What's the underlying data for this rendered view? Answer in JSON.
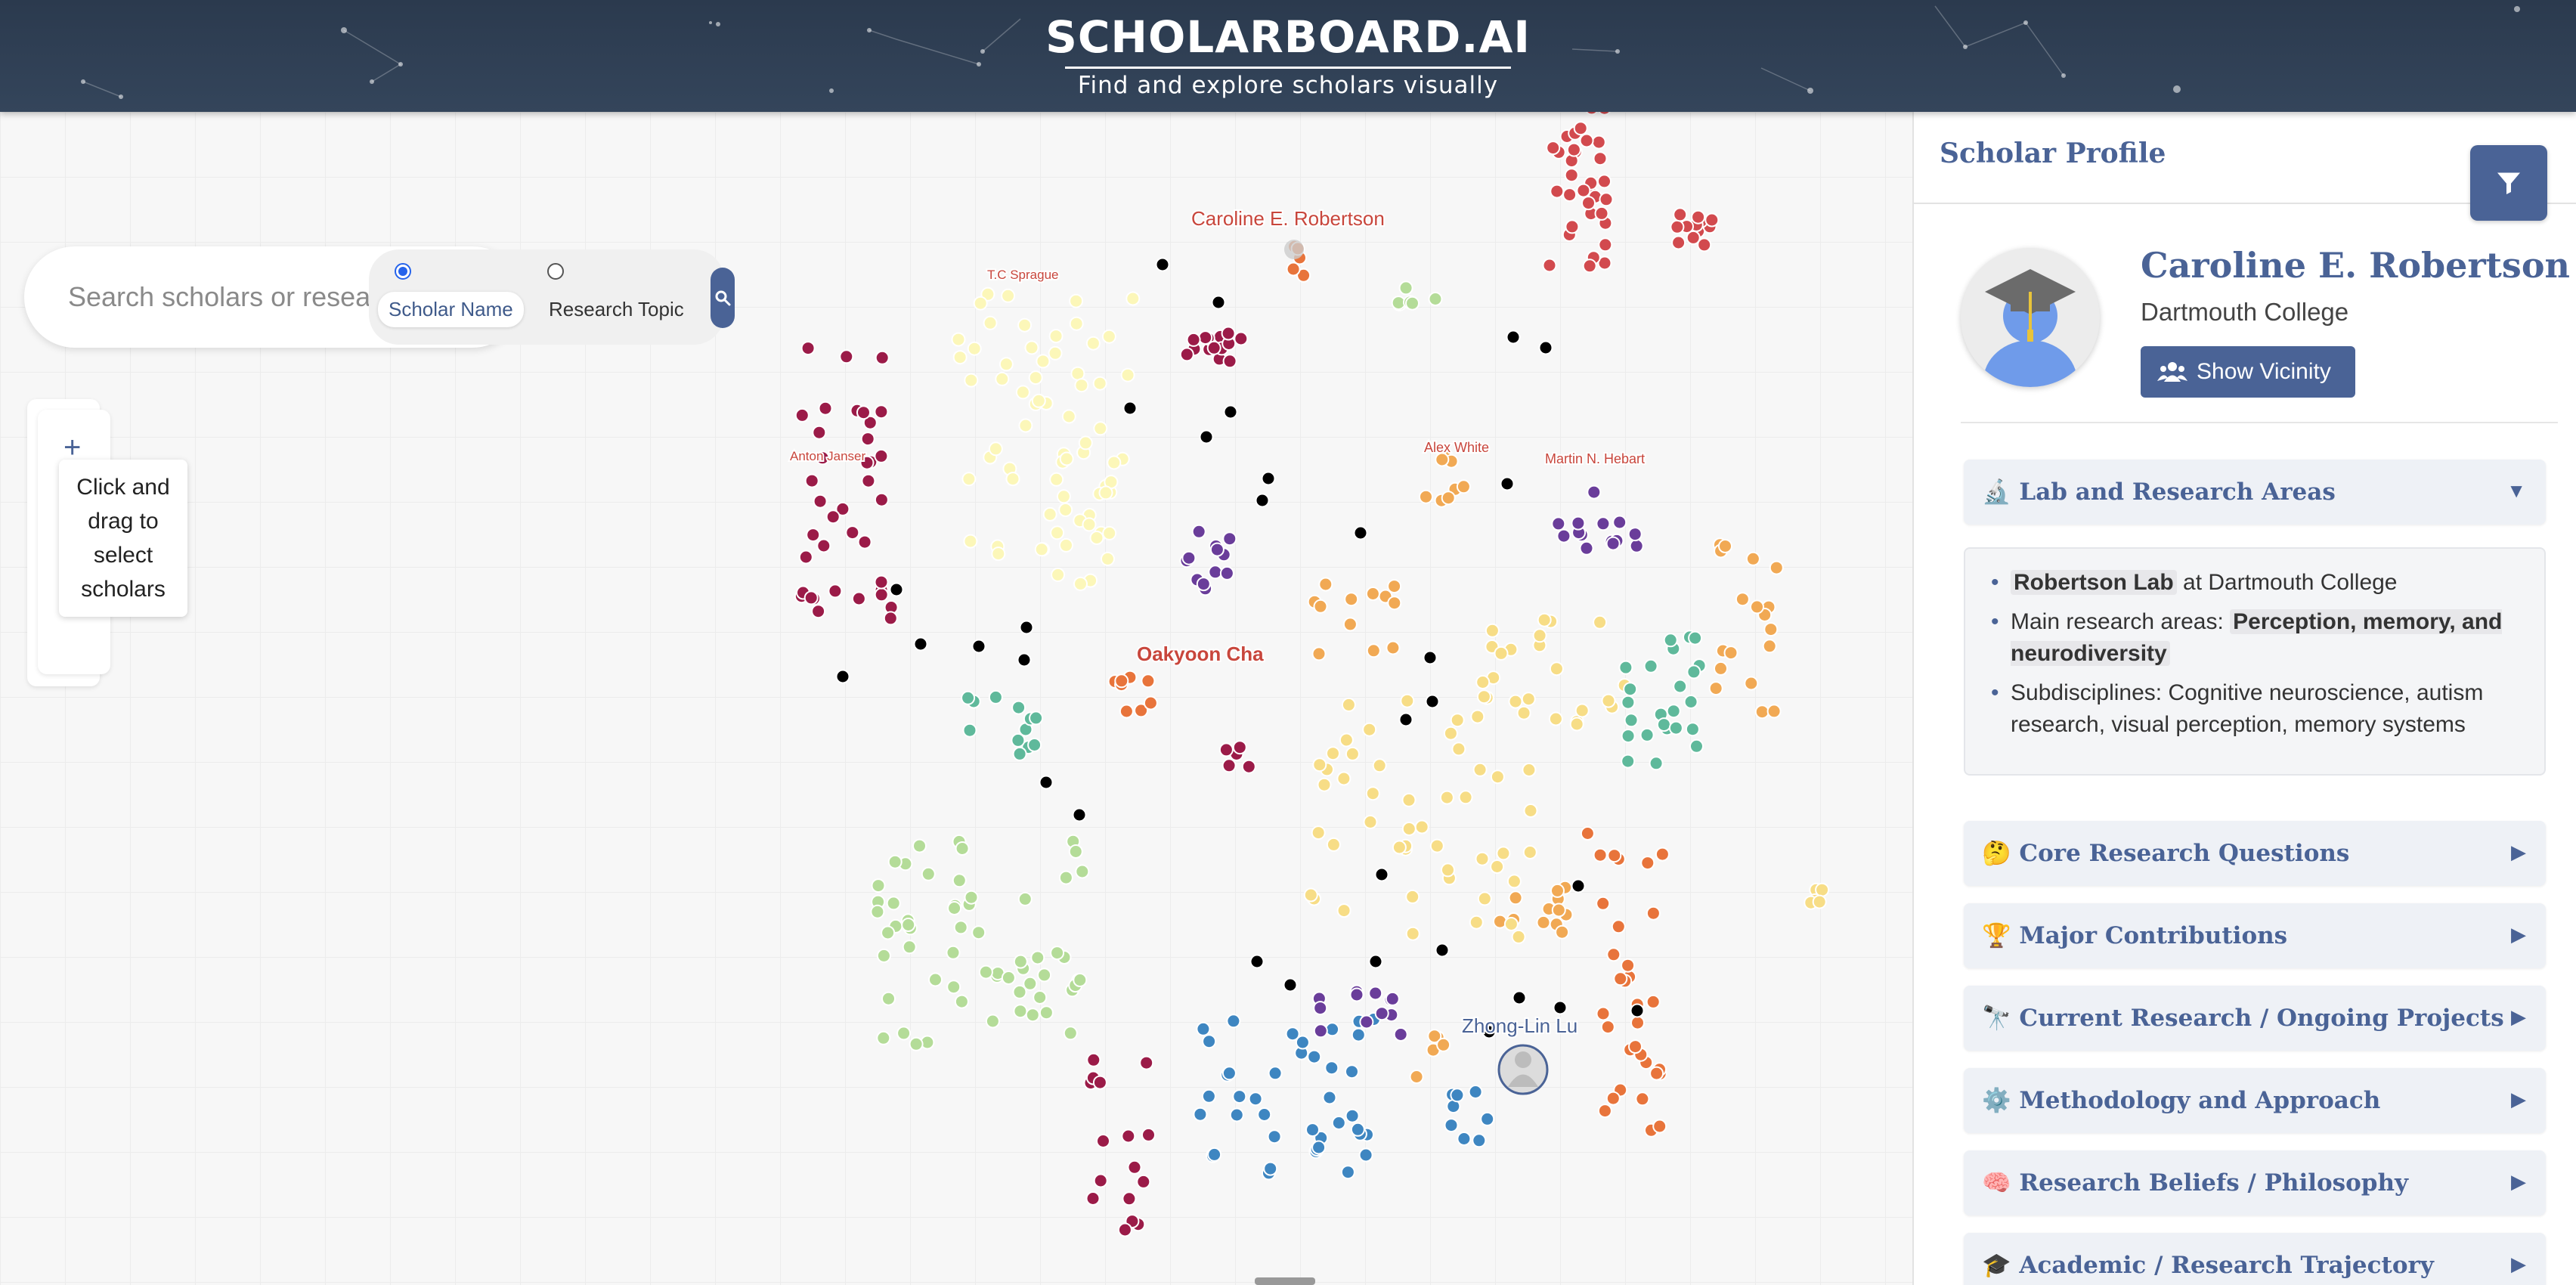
{
  "header": {
    "title": "SCHOLARBOARD.AI",
    "subtitle": "Find and explore scholars visually"
  },
  "search": {
    "placeholder": "Search scholars or research topics",
    "options": [
      {
        "label": "Scholar Name",
        "selected": true
      },
      {
        "label": "Research Topic",
        "selected": false
      }
    ],
    "button_icon": "search-icon"
  },
  "tools": {
    "zoom_in_icon": "plus-icon",
    "tooltip": "Click and drag to select scholars"
  },
  "map": {
    "labels": [
      {
        "text": "Caroline E. Robertson"
      },
      {
        "text": "T.C Sprague"
      },
      {
        "text": "Anton Janser"
      },
      {
        "text": "Alex White"
      },
      {
        "text": "Martin N. Hebart"
      },
      {
        "text": "Oakyoon Cha"
      },
      {
        "text": "Zhong-Lin Lu"
      }
    ],
    "colors": {
      "crimson": "#9b1b48",
      "red": "#d24a4e",
      "orange": "#e8743b",
      "light_orange": "#f1a954",
      "yellow": "#f7dd86",
      "pale_yellow": "#fcf7b9",
      "light_green": "#b4dc98",
      "teal": "#5fb99b",
      "blue": "#3e86c1",
      "purple": "#6a3d9a",
      "black": "#000000"
    }
  },
  "panel": {
    "title": "Scholar Profile",
    "filter_icon": "filter-icon",
    "name": "Caroline E. Robertson",
    "affiliation": "Dartmouth College",
    "vicinity_label": "Show Vicinity",
    "sections": [
      {
        "emoji": "🔬",
        "title": "Lab and Research Areas",
        "expanded": true
      },
      {
        "emoji": "🤔",
        "title": "Core Research Questions",
        "expanded": false
      },
      {
        "emoji": "🏆",
        "title": "Major Contributions",
        "expanded": false
      },
      {
        "emoji": "🔭",
        "title": "Current Research / Ongoing Projects",
        "expanded": false
      },
      {
        "emoji": "⚙️",
        "title": "Methodology and Approach",
        "expanded": false
      },
      {
        "emoji": "🧠",
        "title": "Research Beliefs / Philosophy",
        "expanded": false
      },
      {
        "emoji": "🎓",
        "title": "Academic / Research Trajectory",
        "expanded": false
      }
    ],
    "lab": {
      "lab_name": "Robertson Lab",
      "lab_suffix": "at Dartmouth College",
      "areas_prefix": "Main research areas:",
      "areas": "Perception, memory, and neurodiversity",
      "subdisciplines": "Subdisciplines: Cognitive neuroscience, autism research, visual perception, memory systems"
    }
  }
}
